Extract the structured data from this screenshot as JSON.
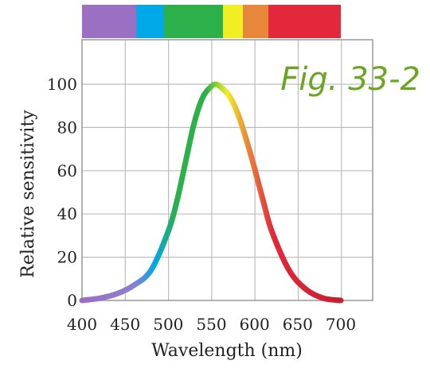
{
  "figure_label": "Fig. 33-2",
  "spectrum_colors": [
    "#9b6fc2",
    "#00a8e8",
    "#2bb04a",
    "#f2ee24",
    "#e8873a",
    "#e2283a"
  ],
  "chart_data": {
    "type": "line",
    "title": "",
    "xlabel": "Wavelength (nm)",
    "ylabel": "Relative sensitivity",
    "xlim": [
      400,
      700
    ],
    "ylim": [
      0,
      100
    ],
    "xticks": [
      400,
      450,
      500,
      550,
      600,
      650,
      700
    ],
    "yticks": [
      0,
      20,
      40,
      60,
      80,
      100
    ],
    "grid": true,
    "peak": {
      "x": 555,
      "y": 100
    },
    "series": [
      {
        "x": [
          400,
          420,
          440,
          460,
          480,
          500,
          510,
          520,
          530,
          540,
          550,
          555,
          560,
          570,
          580,
          590,
          600,
          610,
          620,
          640,
          660,
          680,
          700
        ],
        "y": [
          0,
          1,
          3,
          7,
          14,
          32,
          46,
          64,
          82,
          94,
          99,
          100,
          99,
          95,
          87,
          75,
          61,
          46,
          32,
          14,
          5,
          1,
          0
        ]
      }
    ]
  }
}
